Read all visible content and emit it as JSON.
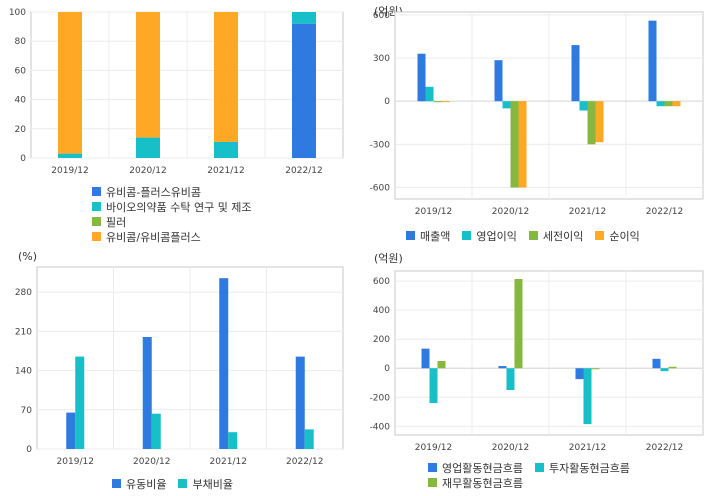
{
  "chart_data": [
    {
      "id": "composition",
      "type": "stacked_bar",
      "title": "",
      "unit": "",
      "categories": [
        "2019/12",
        "2020/12",
        "2021/12",
        "2022/12"
      ],
      "ylim": [
        0,
        100
      ],
      "yticks": [
        0,
        20,
        40,
        60,
        80,
        100
      ],
      "series": [
        {
          "name": "유비콤-플러스유비콤",
          "color": "#2e7ae0",
          "values": [
            0,
            0,
            0,
            92
          ]
        },
        {
          "name": "바이오의약품 수탁 연구 및 제조",
          "color": "#17bfc8",
          "values": [
            3,
            14,
            11,
            8
          ]
        },
        {
          "name": "필러",
          "color": "#86b83f",
          "values": [
            0,
            0,
            0,
            0
          ]
        },
        {
          "name": "유비콤/유비콤플러스",
          "color": "#ffa826",
          "values": [
            97,
            86,
            89,
            0
          ]
        }
      ]
    },
    {
      "id": "income",
      "type": "bar",
      "unit": "(억원)",
      "categories": [
        "2019/12",
        "2020/12",
        "2021/12",
        "2022/12"
      ],
      "ylim": [
        -680,
        620
      ],
      "yticks": [
        600,
        300,
        0,
        -300,
        -600
      ],
      "series": [
        {
          "name": "매출액",
          "color": "#2e7ae0",
          "values": [
            330,
            285,
            390,
            560
          ]
        },
        {
          "name": "영업이익",
          "color": "#17bfc8",
          "values": [
            100,
            -50,
            -65,
            -35
          ]
        },
        {
          "name": "세전이익",
          "color": "#86b83f",
          "values": [
            -5,
            -600,
            -300,
            -35
          ]
        },
        {
          "name": "순이익",
          "color": "#ffa826",
          "values": [
            -5,
            -600,
            -285,
            -35
          ]
        }
      ]
    },
    {
      "id": "ratios",
      "type": "bar",
      "unit": "(%)",
      "categories": [
        "2019/12",
        "2020/12",
        "2021/12",
        "2022/12"
      ],
      "ylim": [
        0,
        325
      ],
      "yticks": [
        0,
        70,
        140,
        210,
        280
      ],
      "series": [
        {
          "name": "유동비율",
          "color": "#2e7ae0",
          "values": [
            65,
            200,
            305,
            165
          ]
        },
        {
          "name": "부채비율",
          "color": "#17bfc8",
          "values": [
            165,
            63,
            30,
            35
          ]
        }
      ]
    },
    {
      "id": "cashflow",
      "type": "bar",
      "unit": "(억원)",
      "categories": [
        "2019/12",
        "2020/12",
        "2021/12",
        "2022/12"
      ],
      "ylim": [
        -460,
        670
      ],
      "yticks": [
        600,
        400,
        200,
        0,
        -200,
        -400
      ],
      "series": [
        {
          "name": "영업활동현금흐름",
          "color": "#2e7ae0",
          "values": [
            135,
            15,
            -75,
            65
          ]
        },
        {
          "name": "투자활동현금흐름",
          "color": "#17bfc8",
          "values": [
            -240,
            -150,
            -385,
            -20
          ]
        },
        {
          "name": "재무활동현금흐름",
          "color": "#86b83f",
          "values": [
            50,
            615,
            -5,
            10
          ]
        }
      ]
    }
  ]
}
